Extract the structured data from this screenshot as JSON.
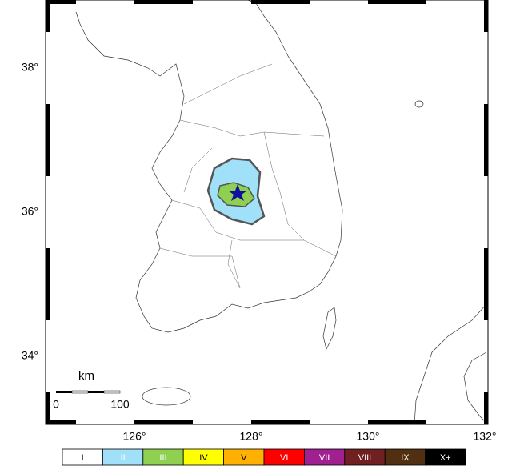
{
  "map": {
    "lon_labels": [
      "126°",
      "128°",
      "130°",
      "132°"
    ],
    "lat_labels": [
      "38°",
      "36°",
      "34°"
    ],
    "scale_bar": {
      "unit": "km",
      "labels": [
        "0",
        "100"
      ]
    },
    "legend": [
      {
        "label": "I",
        "color": "#ffffff",
        "text_color": "#000000"
      },
      {
        "label": "II",
        "color": "#a0e0f8",
        "text_color": "#ffffff"
      },
      {
        "label": "III",
        "color": "#90d050",
        "text_color": "#ffffff"
      },
      {
        "label": "IV",
        "color": "#ffff00",
        "text_color": "#000000"
      },
      {
        "label": "V",
        "color": "#ffb000",
        "text_color": "#000000"
      },
      {
        "label": "VI",
        "color": "#ff0000",
        "text_color": "#ffffff"
      },
      {
        "label": "VII",
        "color": "#a02090",
        "text_color": "#ffffff"
      },
      {
        "label": "VIII",
        "color": "#702020",
        "text_color": "#ffffff"
      },
      {
        "label": "IX",
        "color": "#503010",
        "text_color": "#ffffff"
      },
      {
        "label": "X+",
        "color": "#000000",
        "text_color": "#ffffff"
      }
    ]
  }
}
